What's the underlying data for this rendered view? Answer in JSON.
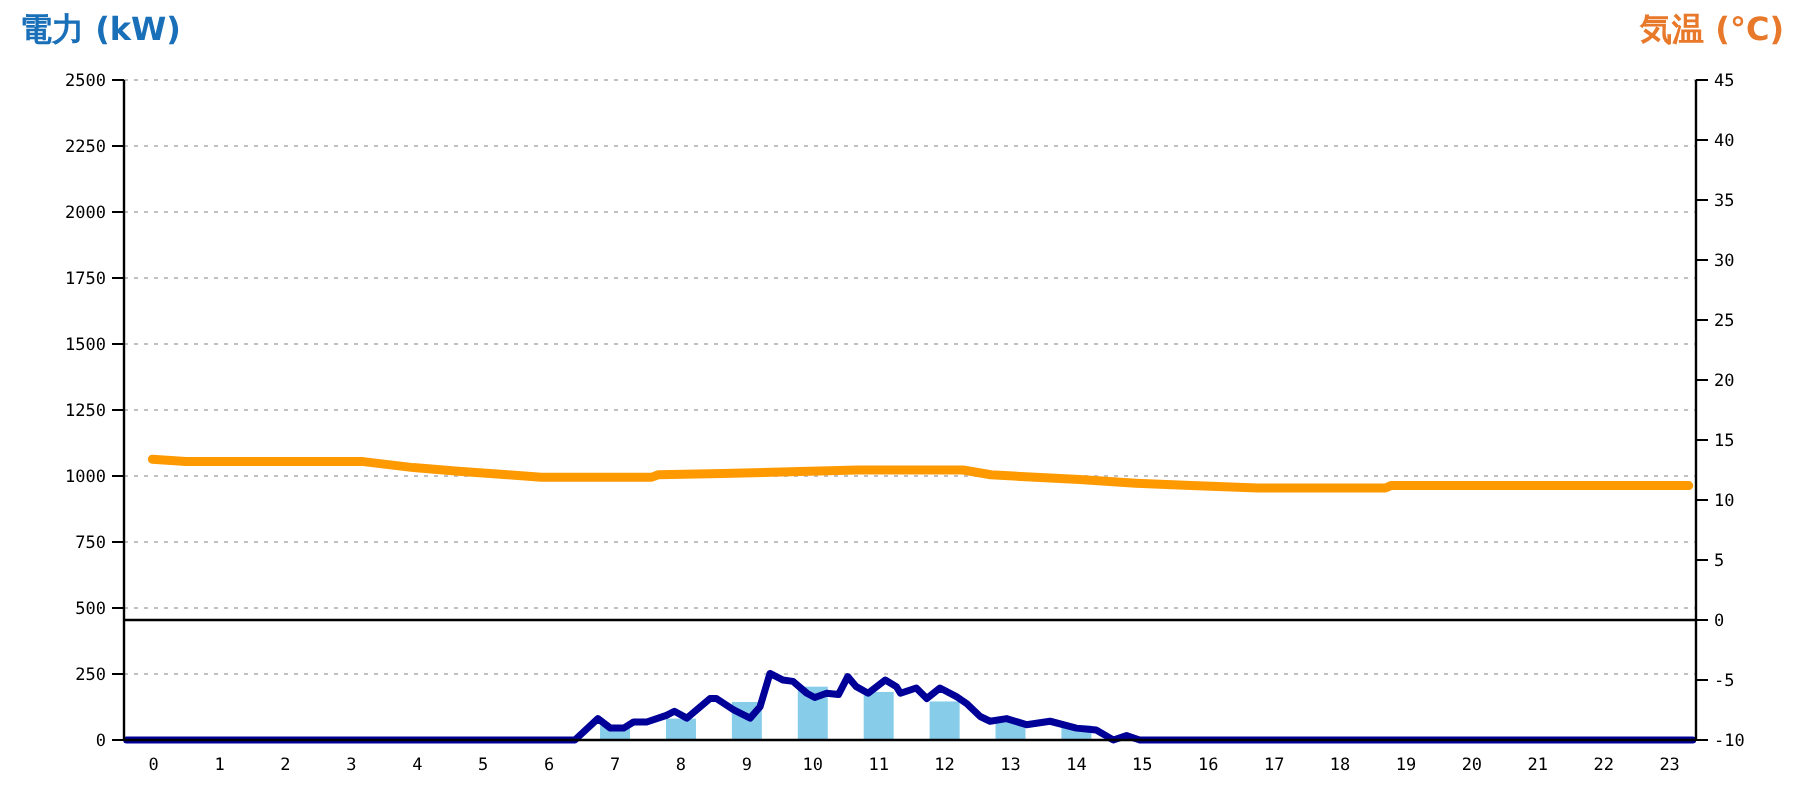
{
  "chart_data": {
    "type": "bar",
    "ylabel": "電力 (kW)",
    "y2label": "気温 (°C)",
    "x": [
      0,
      1,
      2,
      3,
      4,
      5,
      6,
      7,
      8,
      9,
      10,
      11,
      12,
      13,
      14,
      15,
      16,
      17,
      18,
      19,
      20,
      21,
      22,
      23
    ],
    "xlim": [
      -0.45,
      23.4
    ],
    "xticks": [
      0,
      1,
      2,
      3,
      4,
      5,
      6,
      7,
      8,
      9,
      10,
      11,
      12,
      13,
      14,
      15,
      16,
      17,
      18,
      19,
      20,
      21,
      22,
      23
    ],
    "ylim": [
      0,
      2500
    ],
    "yticks": [
      0,
      250,
      500,
      750,
      1000,
      1250,
      1500,
      1750,
      2000,
      2250,
      2500
    ],
    "y2lim": [
      -10,
      45
    ],
    "y2ticks": [
      -10,
      -5,
      0,
      5,
      10,
      15,
      20,
      25,
      30,
      35,
      40,
      45
    ],
    "grid": "y",
    "ref_lines": [
      {
        "axis": "y2",
        "value": 0,
        "color": "#000000"
      }
    ],
    "series": [
      {
        "color": "#87cdea",
        "values": [
          0,
          0,
          0,
          0,
          0,
          0,
          0,
          55,
          81,
          144,
          202,
          182,
          146,
          70,
          55,
          0,
          0,
          0,
          0,
          0,
          0,
          0,
          0,
          0
        ]
      },
      {
        "type": "line",
        "color": "#000099",
        "x": [
          -0.41,
          6.39,
          6.74,
          6.93,
          7.13,
          7.28,
          7.48,
          7.78,
          7.9,
          8.09,
          8.44,
          8.54,
          8.8,
          9.05,
          9.2,
          9.35,
          9.55,
          9.7,
          9.91,
          10.03,
          10.21,
          10.39,
          10.53,
          10.66,
          10.84,
          11.1,
          11.27,
          11.33,
          11.57,
          11.73,
          11.93,
          12.18,
          12.33,
          12.54,
          12.69,
          12.94,
          13.24,
          13.6,
          14.0,
          14.3,
          14.56,
          14.76,
          14.96,
          23.35
        ],
        "values": [
          0,
          0,
          81,
          45,
          45,
          68,
          68,
          93,
          109,
          83,
          157,
          157,
          114,
          83,
          126,
          252,
          227,
          222,
          177,
          161,
          177,
          172,
          240,
          202,
          177,
          227,
          202,
          177,
          197,
          157,
          197,
          164,
          139,
          89,
          71,
          81,
          58,
          71,
          45,
          38,
          0,
          17,
          0,
          0
        ]
      },
      {
        "type": "line",
        "axis": "y2",
        "color": "#ff9900",
        "x": [
          -0.02,
          0.49,
          3.18,
          3.94,
          4.62,
          5.37,
          5.88,
          7.56,
          7.65,
          8.63,
          10.68,
          12.28,
          12.7,
          13.38,
          14.05,
          14.9,
          15.74,
          16.75,
          18.69,
          18.77,
          23.29
        ],
        "values": [
          13.4,
          13.2,
          13.2,
          12.7,
          12.4,
          12.1,
          11.9,
          11.9,
          12.1,
          12.2,
          12.5,
          12.5,
          12.1,
          11.9,
          11.7,
          11.4,
          11.2,
          11.0,
          11.0,
          11.2,
          11.2
        ]
      }
    ]
  }
}
